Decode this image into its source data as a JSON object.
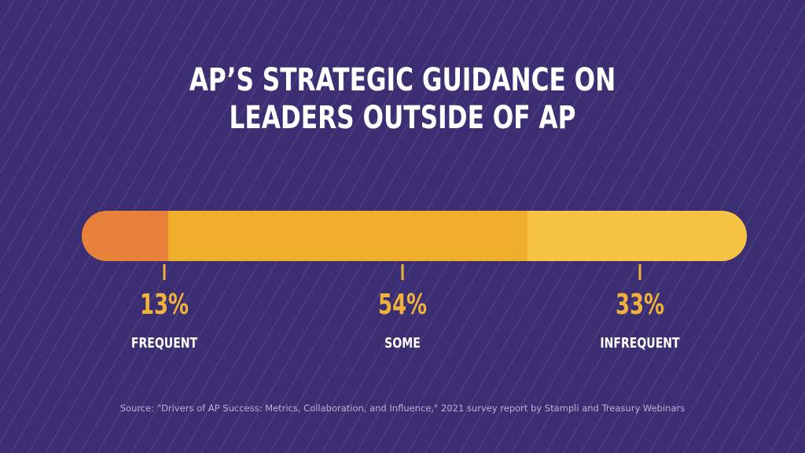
{
  "title_lines": [
    "AP’S STRATEGIC GUIDANCE ON",
    "LEADERS OUTSIDE OF AP"
  ],
  "source": "Source: \"Drivers of AP Success: Metrics, Collaboration, and Influence,\" 2021 survey report by Stampli and Treasury Webinars",
  "colors": {
    "background": "#3b2e72",
    "frequent": "#e8813a",
    "some": "#efae2c",
    "infrequent": "#f6c344",
    "value_text": "#f0b23a"
  },
  "chart_data": {
    "type": "bar",
    "orientation": "horizontal-stacked",
    "title": "AP’S STRATEGIC GUIDANCE ON LEADERS OUTSIDE OF AP",
    "categories": [
      "FREQUENT",
      "SOME",
      "INFREQUENT"
    ],
    "values": [
      13,
      54,
      33
    ],
    "value_labels": [
      "13%",
      "54%",
      "33%"
    ],
    "unit": "%",
    "xlim": [
      0,
      100
    ],
    "colors": [
      "#e8813a",
      "#efae2c",
      "#f6c344"
    ]
  }
}
